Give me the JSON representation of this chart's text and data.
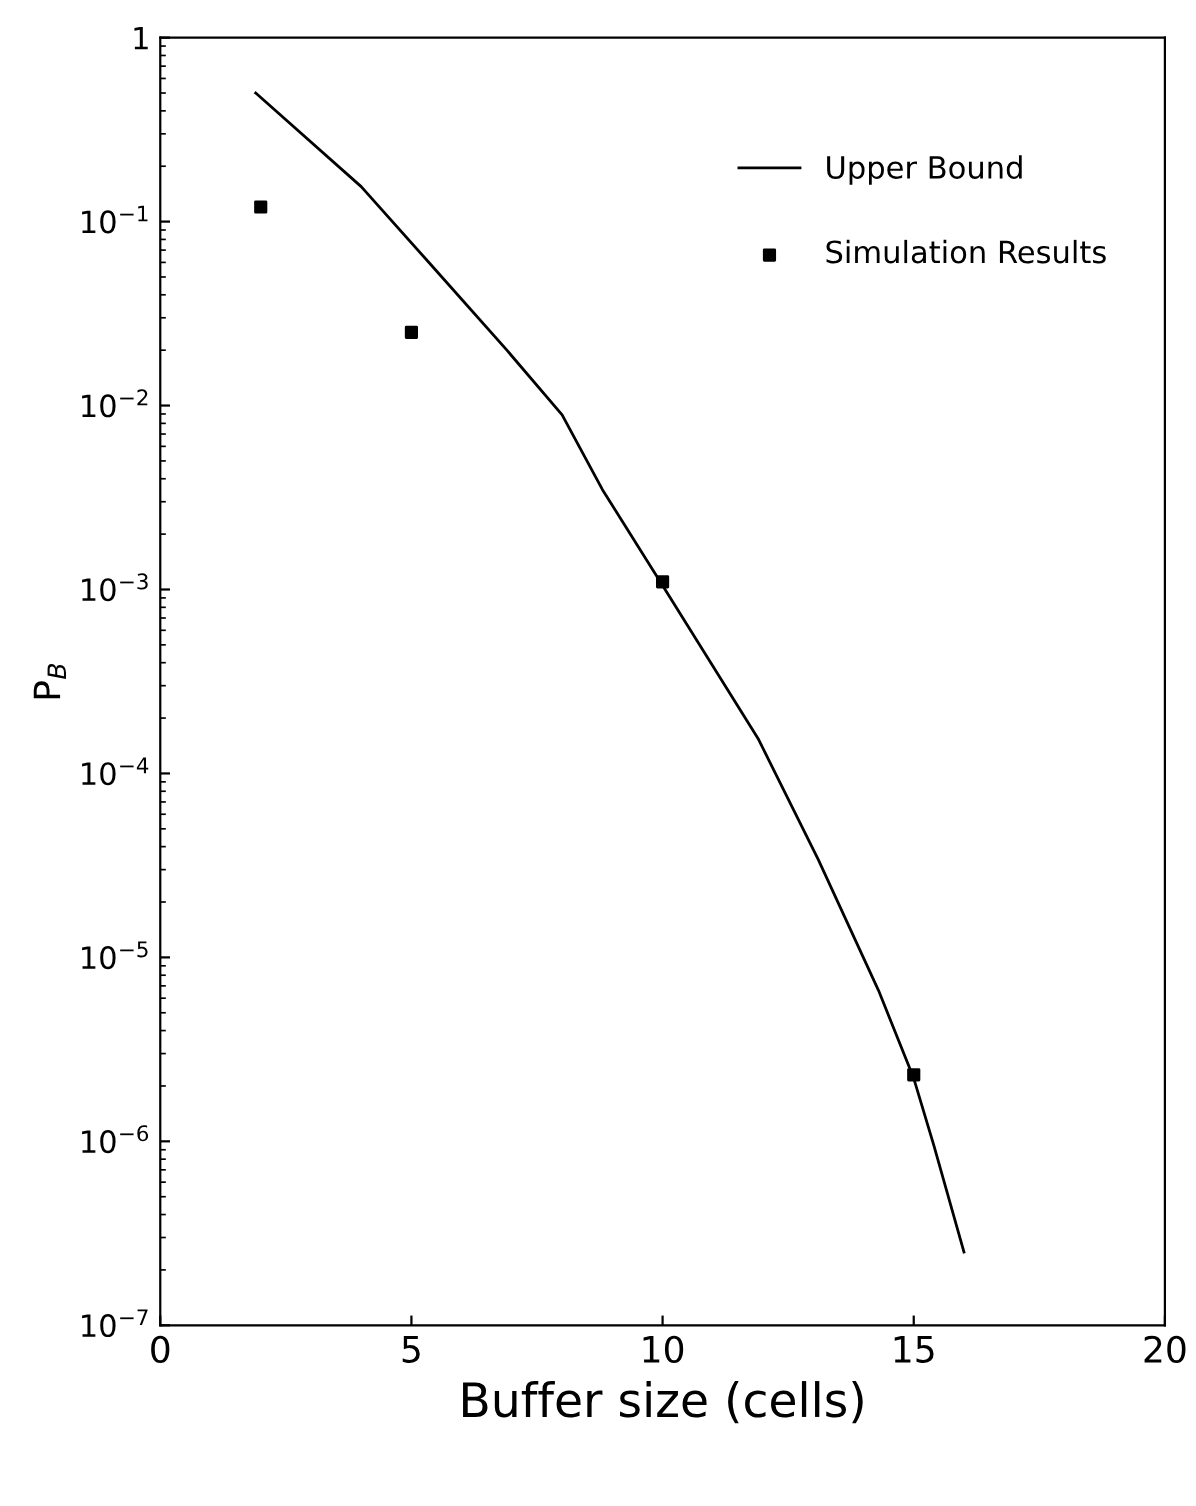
{
  "chart_data": {
    "type": "line",
    "xlabel": "Buffer size (cells)",
    "ylabel": "P$_{B}$",
    "log": "y",
    "xlim": [
      0,
      20
    ],
    "xticks": [
      0,
      5,
      10,
      15,
      20
    ],
    "ylim": [
      1e-07,
      1
    ],
    "yticks": [
      {
        "value": 1,
        "label": "1"
      },
      {
        "value": 0.1,
        "label": "10$^{−1}$"
      },
      {
        "value": 0.01,
        "label": "10$^{−2}$"
      },
      {
        "value": 0.001,
        "label": "10$^{−3}$"
      },
      {
        "value": 0.0001,
        "label": "10$^{−4}$"
      },
      {
        "value": 1e-05,
        "label": "10$^{−5}$"
      },
      {
        "value": 1e-06,
        "label": "10$^{−6}$"
      },
      {
        "value": 1e-07,
        "label": "10$^{−7}$"
      }
    ],
    "grid": false,
    "legend": "top right",
    "series": [
      {
        "name": "Upper Bound",
        "color": "#000000",
        "line_style": "solid",
        "marker": "none",
        "x": [
          1.9,
          4.0,
          5.3,
          6.9,
          8.0,
          8.8,
          10.0,
          11.9,
          13.1,
          14.3,
          15.0,
          15.4,
          16.0
        ],
        "values": [
          0.5,
          0.155,
          0.062,
          0.02,
          0.0089,
          0.0035,
          0.00105,
          0.000155,
          3.4e-05,
          6.6e-06,
          2.2e-06,
          9.5e-07,
          2.5e-07
        ]
      },
      {
        "name": "Simulation Results",
        "type": "scatter",
        "color": "#000000",
        "marker": "square",
        "x": [
          2,
          5,
          10,
          15
        ],
        "values": [
          0.12,
          0.025,
          0.0011,
          2.3e-06
        ]
      }
    ]
  }
}
